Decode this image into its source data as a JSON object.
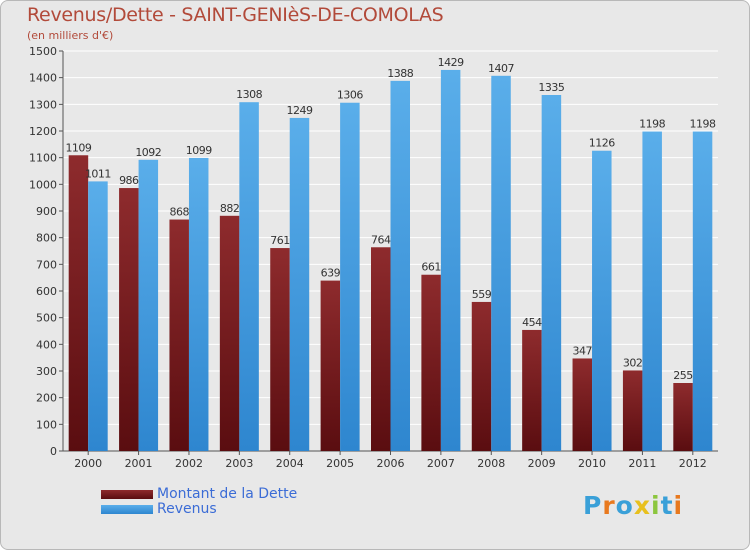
{
  "title": "Revenus/Dette - SAINT-GENIèS-DE-COMOLAS",
  "subtitle": "(en milliers d'€)",
  "logo": {
    "text": "Proxiti",
    "letters": [
      {
        "ch": "P",
        "color": "#3aa0d8"
      },
      {
        "ch": "r",
        "color": "#e8791e"
      },
      {
        "ch": "o",
        "color": "#3aa0d8"
      },
      {
        "ch": "x",
        "color": "#e8c01e"
      },
      {
        "ch": "i",
        "color": "#8cc63e"
      },
      {
        "ch": "t",
        "color": "#3aa0d8"
      },
      {
        "ch": "i",
        "color": "#e8791e"
      }
    ]
  },
  "chart_data": {
    "type": "bar",
    "categories": [
      "2000",
      "2001",
      "2002",
      "2003",
      "2004",
      "2005",
      "2006",
      "2007",
      "2008",
      "2009",
      "2010",
      "2011",
      "2012"
    ],
    "series": [
      {
        "name": "Montant de la Dette",
        "color": "#7a1f22",
        "values": [
          1109,
          986,
          868,
          882,
          761,
          639,
          764,
          661,
          559,
          454,
          347,
          302,
          255
        ]
      },
      {
        "name": "Revenus",
        "color": "#4aa3e6",
        "values": [
          1011,
          1092,
          1099,
          1308,
          1249,
          1306,
          1388,
          1429,
          1407,
          1335,
          1126,
          1198,
          1198
        ]
      }
    ],
    "ylim": [
      0,
      1500
    ],
    "yticks": [
      0,
      100,
      200,
      300,
      400,
      500,
      600,
      700,
      800,
      900,
      1000,
      1100,
      1200,
      1300,
      1400,
      1500
    ],
    "grid": true,
    "legend": "bottom-left"
  }
}
